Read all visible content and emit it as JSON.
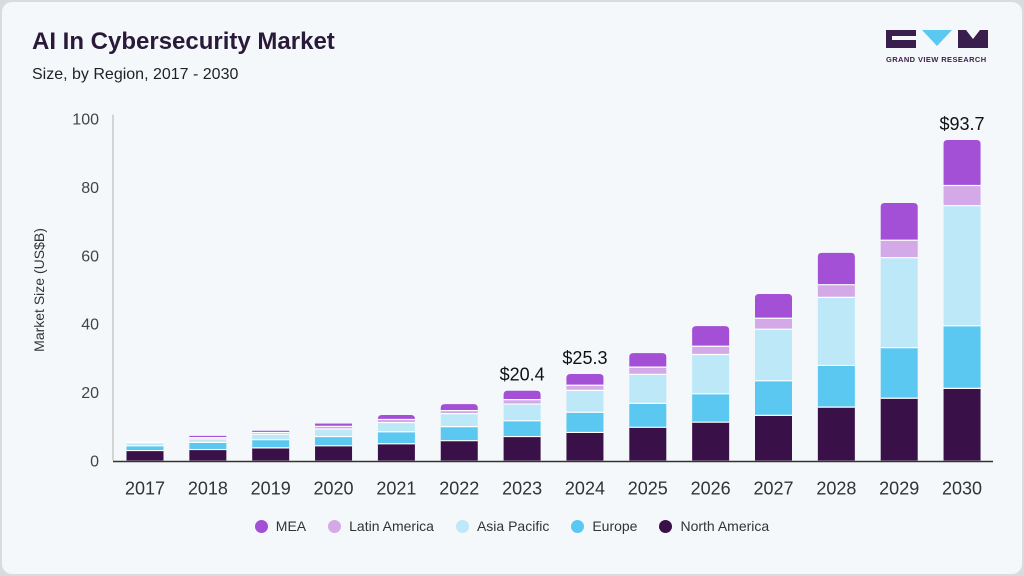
{
  "header": {
    "title": "AI In Cybersecurity Market",
    "subtitle": "Size, by Region, 2017 - 2030"
  },
  "logo": {
    "text": "GRAND VIEW RESEARCH"
  },
  "chart_data": {
    "type": "bar",
    "stacked": true,
    "title": "AI In Cybersecurity Market",
    "subtitle": "Size, by Region, 2017 - 2030",
    "xlabel": "",
    "ylabel": "Market Size (US$B)",
    "ylim": [
      0,
      100
    ],
    "yticks": [
      0,
      20,
      40,
      60,
      80,
      100
    ],
    "grid": false,
    "legend_position": "bottom",
    "categories": [
      "2017",
      "2018",
      "2019",
      "2020",
      "2021",
      "2022",
      "2023",
      "2024",
      "2025",
      "2026",
      "2027",
      "2028",
      "2029",
      "2030"
    ],
    "series": [
      {
        "name": "North America",
        "color": "#3a1049",
        "values": [
          2.9,
          3.2,
          3.7,
          4.3,
          4.9,
          5.8,
          7.0,
          8.2,
          9.7,
          11.2,
          13.2,
          15.6,
          18.2,
          21.1
        ]
      },
      {
        "name": "Europe",
        "color": "#5bc8f2",
        "values": [
          1.4,
          2.1,
          2.4,
          2.7,
          3.5,
          4.1,
          4.6,
          5.9,
          7.0,
          8.3,
          10.1,
          12.2,
          14.8,
          18.3
        ]
      },
      {
        "name": "Asia Pacific",
        "color": "#bde8f8",
        "values": [
          0.9,
          1.0,
          1.6,
          2.2,
          2.7,
          3.8,
          4.9,
          6.4,
          8.5,
          11.5,
          15.1,
          19.9,
          26.3,
          35.1
        ]
      },
      {
        "name": "Latin America",
        "color": "#d3a9e8",
        "values": [
          0.1,
          0.4,
          0.5,
          0.8,
          0.9,
          0.9,
          1.3,
          1.5,
          2.1,
          2.4,
          3.2,
          3.7,
          5.1,
          5.9
        ]
      },
      {
        "name": "MEA",
        "color": "#a34fd6",
        "values": [
          0.1,
          0.5,
          0.5,
          0.8,
          1.3,
          1.9,
          2.6,
          3.3,
          4.1,
          5.9,
          7.1,
          9.3,
          10.9,
          13.3
        ]
      }
    ],
    "data_labels": [
      {
        "category": "2023",
        "text": "$20.4"
      },
      {
        "category": "2024",
        "text": "$25.3"
      },
      {
        "category": "2030",
        "text": "$93.7"
      }
    ],
    "legend_order": [
      "MEA",
      "Latin America",
      "Asia Pacific",
      "Europe",
      "North America"
    ]
  }
}
